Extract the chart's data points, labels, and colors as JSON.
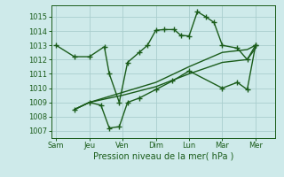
{
  "title": "",
  "xlabel": "Pression niveau de la mer( hPa )",
  "ylabel": "",
  "background_color": "#ceeaea",
  "grid_color": "#aacece",
  "line_color": "#1a5c1a",
  "ylim": [
    1006.5,
    1015.8
  ],
  "xlim": [
    -0.15,
    6.6
  ],
  "xtick_labels": [
    "Sam",
    "Jeu",
    "Ven",
    "Dim",
    "Lun",
    "Mar",
    "Mer"
  ],
  "xtick_positions": [
    0,
    1,
    2,
    3,
    4,
    5,
    6
  ],
  "ytick_values": [
    1007,
    1008,
    1009,
    1010,
    1011,
    1012,
    1013,
    1014,
    1015
  ],
  "series": [
    {
      "x": [
        0,
        0.55,
        1.0,
        1.45,
        1.6,
        1.9,
        2.15,
        2.5,
        2.75,
        3.0,
        3.25,
        3.55,
        3.75,
        4.0,
        4.25,
        4.5,
        4.75,
        5.0,
        5.45,
        5.75,
        6.0
      ],
      "y": [
        1013.0,
        1012.2,
        1012.2,
        1012.9,
        1011.0,
        1009.0,
        1011.8,
        1012.5,
        1013.0,
        1014.05,
        1014.1,
        1014.1,
        1013.7,
        1013.65,
        1015.35,
        1015.0,
        1014.6,
        1013.0,
        1012.8,
        1012.0,
        1013.0
      ],
      "marker": "+",
      "markersize": 4,
      "linewidth": 1.0
    },
    {
      "x": [
        0.55,
        1.0,
        1.35,
        1.6,
        1.9,
        2.15,
        2.5,
        3.0,
        3.5,
        4.0,
        5.0,
        5.45,
        5.75,
        6.0
      ],
      "y": [
        1008.5,
        1009.0,
        1008.8,
        1007.2,
        1007.3,
        1009.0,
        1009.3,
        1009.9,
        1010.5,
        1011.2,
        1010.0,
        1010.4,
        1009.9,
        1013.0
      ],
      "marker": "+",
      "markersize": 4,
      "linewidth": 1.0
    },
    {
      "x": [
        0.55,
        1.0,
        2.0,
        3.0,
        4.0,
        5.0,
        5.75,
        6.0
      ],
      "y": [
        1008.5,
        1009.0,
        1009.5,
        1010.1,
        1011.0,
        1011.8,
        1012.0,
        1012.8
      ],
      "marker": null,
      "markersize": 0,
      "linewidth": 1.0
    },
    {
      "x": [
        0.55,
        1.0,
        2.0,
        3.0,
        4.0,
        5.0,
        5.75,
        6.0
      ],
      "y": [
        1008.5,
        1009.0,
        1009.7,
        1010.4,
        1011.5,
        1012.5,
        1012.7,
        1013.0
      ],
      "marker": null,
      "markersize": 0,
      "linewidth": 1.0
    }
  ]
}
